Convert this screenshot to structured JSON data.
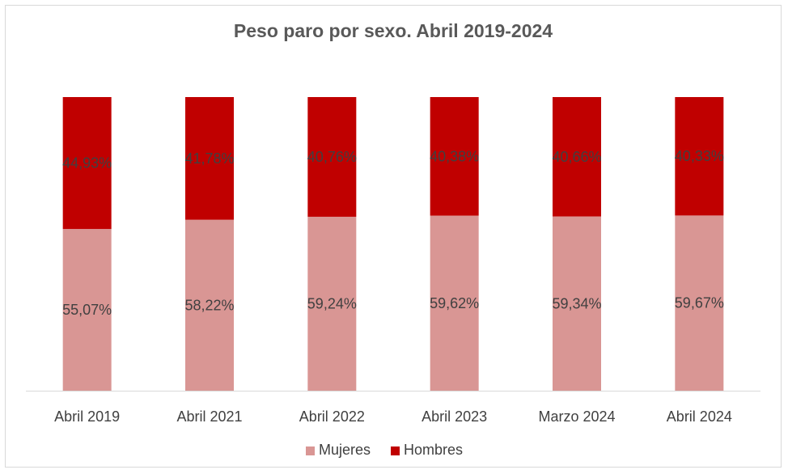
{
  "chart_data": {
    "type": "bar",
    "stacked": true,
    "title": "Peso paro por sexo. Abril 2019-2024",
    "categories": [
      "Abril 2019",
      "Abril 2021",
      "Abril 2022",
      "Abril 2023",
      "Marzo 2024",
      "Abril 2024"
    ],
    "series": [
      {
        "name": "Mujeres",
        "color": "#d99694",
        "values": [
          55.07,
          58.22,
          59.24,
          59.62,
          59.34,
          59.67
        ],
        "labels": [
          "55,07%",
          "58,22%",
          "59,24%",
          "59,62%",
          "59,34%",
          "59,67%"
        ]
      },
      {
        "name": "Hombres",
        "color": "#c00000",
        "values": [
          44.93,
          41.78,
          40.76,
          40.38,
          40.66,
          40.33
        ],
        "labels": [
          "44,93%",
          "41,78%",
          "40,76%",
          "40,38%",
          "40,66%",
          "40,33%"
        ]
      }
    ],
    "ylim": [
      0,
      100
    ],
    "grid": false,
    "legend": "bottom"
  }
}
